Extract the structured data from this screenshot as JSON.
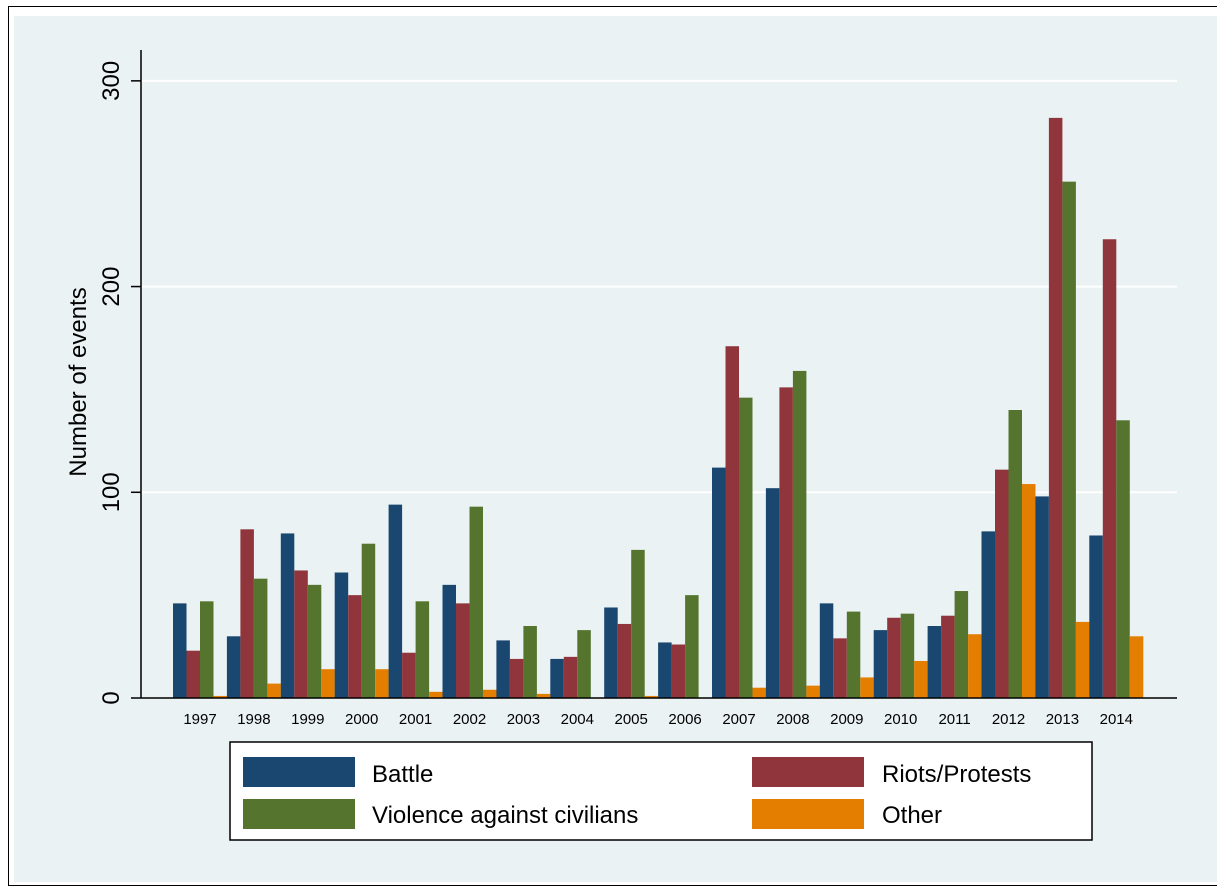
{
  "chart_data": {
    "type": "bar",
    "title": "",
    "xlabel": "",
    "ylabel": "Number of events",
    "ylim": [
      0,
      315
    ],
    "yticks": [
      0,
      100,
      200,
      300
    ],
    "grid": true,
    "legend_position": "bottom",
    "categories": [
      "1997",
      "1998",
      "1999",
      "2000",
      "2001",
      "2002",
      "2003",
      "2004",
      "2005",
      "2006",
      "2007",
      "2008",
      "2009",
      "2010",
      "2011",
      "2012",
      "2013",
      "2014"
    ],
    "series": [
      {
        "name": "Battle",
        "color": "#1a476f",
        "values": [
          46,
          30,
          80,
          61,
          94,
          55,
          28,
          19,
          44,
          27,
          112,
          102,
          46,
          33,
          35,
          81,
          98,
          79
        ]
      },
      {
        "name": "Riots/Protests",
        "color": "#90353b",
        "values": [
          23,
          82,
          62,
          50,
          22,
          46,
          19,
          20,
          36,
          26,
          171,
          151,
          29,
          39,
          40,
          111,
          282,
          223
        ]
      },
      {
        "name": "Violence against civilians",
        "color": "#55752f",
        "values": [
          47,
          58,
          55,
          75,
          47,
          93,
          35,
          33,
          72,
          50,
          146,
          159,
          42,
          41,
          52,
          140,
          251,
          135
        ]
      },
      {
        "name": "Other",
        "color": "#e37e00",
        "values": [
          1,
          7,
          14,
          14,
          3,
          4,
          2,
          0,
          1,
          0,
          5,
          6,
          10,
          18,
          31,
          104,
          37,
          30
        ]
      }
    ]
  },
  "legend": {
    "items": [
      {
        "label": "Battle",
        "color": "#1a476f"
      },
      {
        "label": "Riots/Protests",
        "color": "#90353b"
      },
      {
        "label": "Violence against civilians",
        "color": "#55752f"
      },
      {
        "label": "Other",
        "color": "#e37e00"
      }
    ]
  }
}
